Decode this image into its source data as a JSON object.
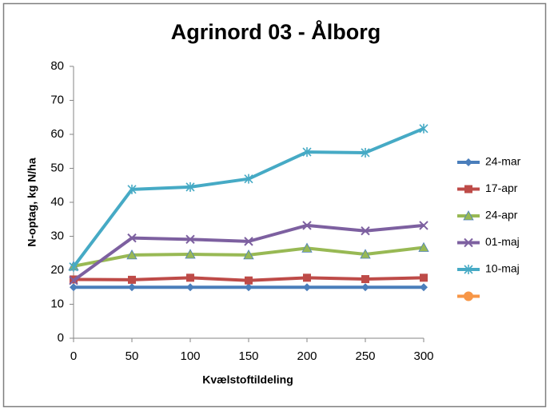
{
  "chart_data": {
    "type": "line",
    "title": "Agrinord 03 - Ålborg",
    "x_label": "Kvælstoftildeling",
    "y_label": "N-optag, kg N/ha",
    "x": [
      0,
      50,
      100,
      150,
      200,
      250,
      300
    ],
    "xlim": [
      0,
      300
    ],
    "xticks": [
      0,
      50,
      100,
      150,
      200,
      250,
      300
    ],
    "ylim": [
      0,
      80
    ],
    "yticks": [
      0,
      10,
      20,
      30,
      40,
      50,
      60,
      70,
      80
    ],
    "grid": false,
    "legend": "right",
    "series": [
      {
        "name": "24-mar",
        "color": "#4a7ebb",
        "marker": "diamond",
        "values": [
          15,
          15,
          15,
          15,
          15,
          15,
          15
        ]
      },
      {
        "name": "17-apr",
        "color": "#be4b48",
        "marker": "square",
        "values": [
          17.3,
          17.2,
          17.8,
          17.0,
          17.8,
          17.4,
          17.8
        ]
      },
      {
        "name": "24-apr",
        "color": "#98b954",
        "marker": "triangle",
        "values": [
          21.2,
          24.5,
          24.7,
          24.5,
          26.5,
          24.7,
          26.7
        ]
      },
      {
        "name": "01-maj",
        "color": "#7d60a0",
        "marker": "x",
        "values": [
          17.0,
          29.5,
          29.1,
          28.5,
          33.2,
          31.6,
          33.2
        ]
      },
      {
        "name": "10-maj",
        "color": "#46aac5",
        "marker": "star",
        "values": [
          21.0,
          43.8,
          44.5,
          46.9,
          54.8,
          54.6,
          61.7
        ]
      },
      {
        "color": "#f79646",
        "marker": "circle",
        "values": [
          null,
          null,
          null,
          null,
          null,
          null,
          null
        ]
      }
    ]
  }
}
